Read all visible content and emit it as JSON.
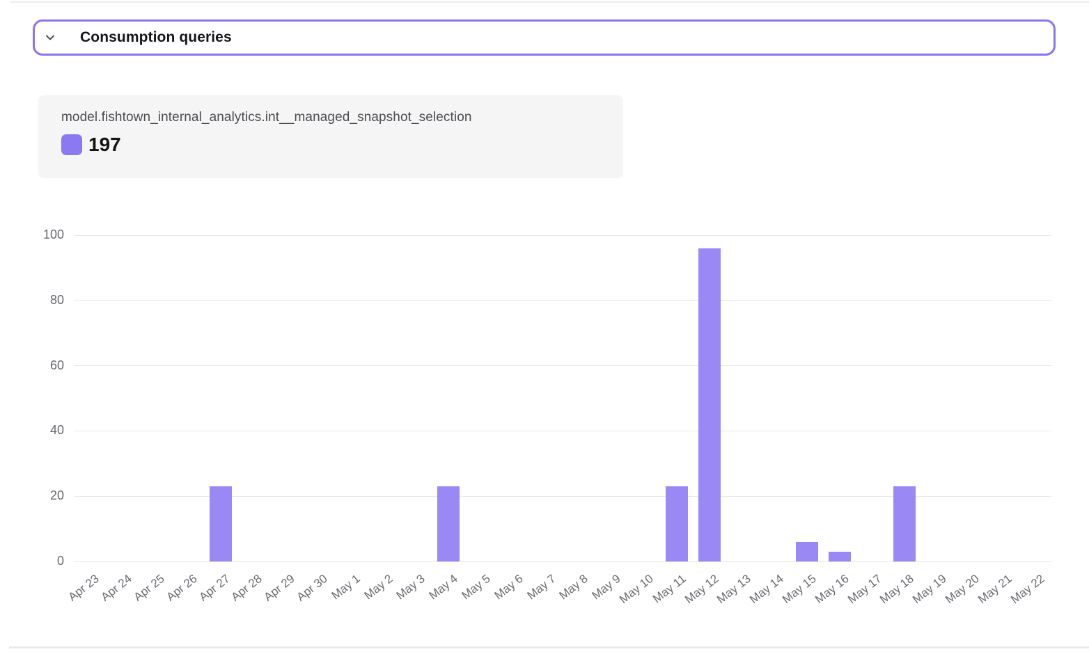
{
  "section_header": {
    "label": "Consumption queries",
    "chevron_icon": "chevron-down-icon"
  },
  "tooltip": {
    "title": "model.fishtown_internal_analytics.int__managed_snapshot_selection",
    "value": "197"
  },
  "colors": {
    "accent_border": "#8677ee",
    "bar_fill": "#9a88f4",
    "legend_swatch": "#8a79f1",
    "gridline": "#e8e7ea",
    "tick_text": "#6b6770"
  },
  "chart_data": {
    "type": "bar",
    "title": "",
    "xlabel": "",
    "ylabel": "",
    "series_name": "model.fishtown_internal_analytics.int__managed_snapshot_selection",
    "categories": [
      "Apr 23",
      "Apr 24",
      "Apr 25",
      "Apr 26",
      "Apr 27",
      "Apr 28",
      "Apr 29",
      "Apr 30",
      "May 1",
      "May 2",
      "May 3",
      "May 4",
      "May 5",
      "May 6",
      "May 7",
      "May 8",
      "May 9",
      "May 10",
      "May 11",
      "May 12",
      "May 13",
      "May 14",
      "May 15",
      "May 16",
      "May 17",
      "May 18",
      "May 19",
      "May 20",
      "May 21",
      "May 22"
    ],
    "values": [
      0,
      0,
      0,
      0,
      23,
      0,
      0,
      0,
      0,
      0,
      0,
      23,
      0,
      0,
      0,
      0,
      0,
      0,
      23,
      96,
      0,
      0,
      6,
      3,
      0,
      23,
      0,
      0,
      0,
      0
    ],
    "total": 197,
    "ylim": [
      0,
      100
    ],
    "yticks": [
      0,
      20,
      40,
      60,
      80,
      100
    ],
    "grid": true,
    "legend_position": "tooltip-top-left"
  }
}
